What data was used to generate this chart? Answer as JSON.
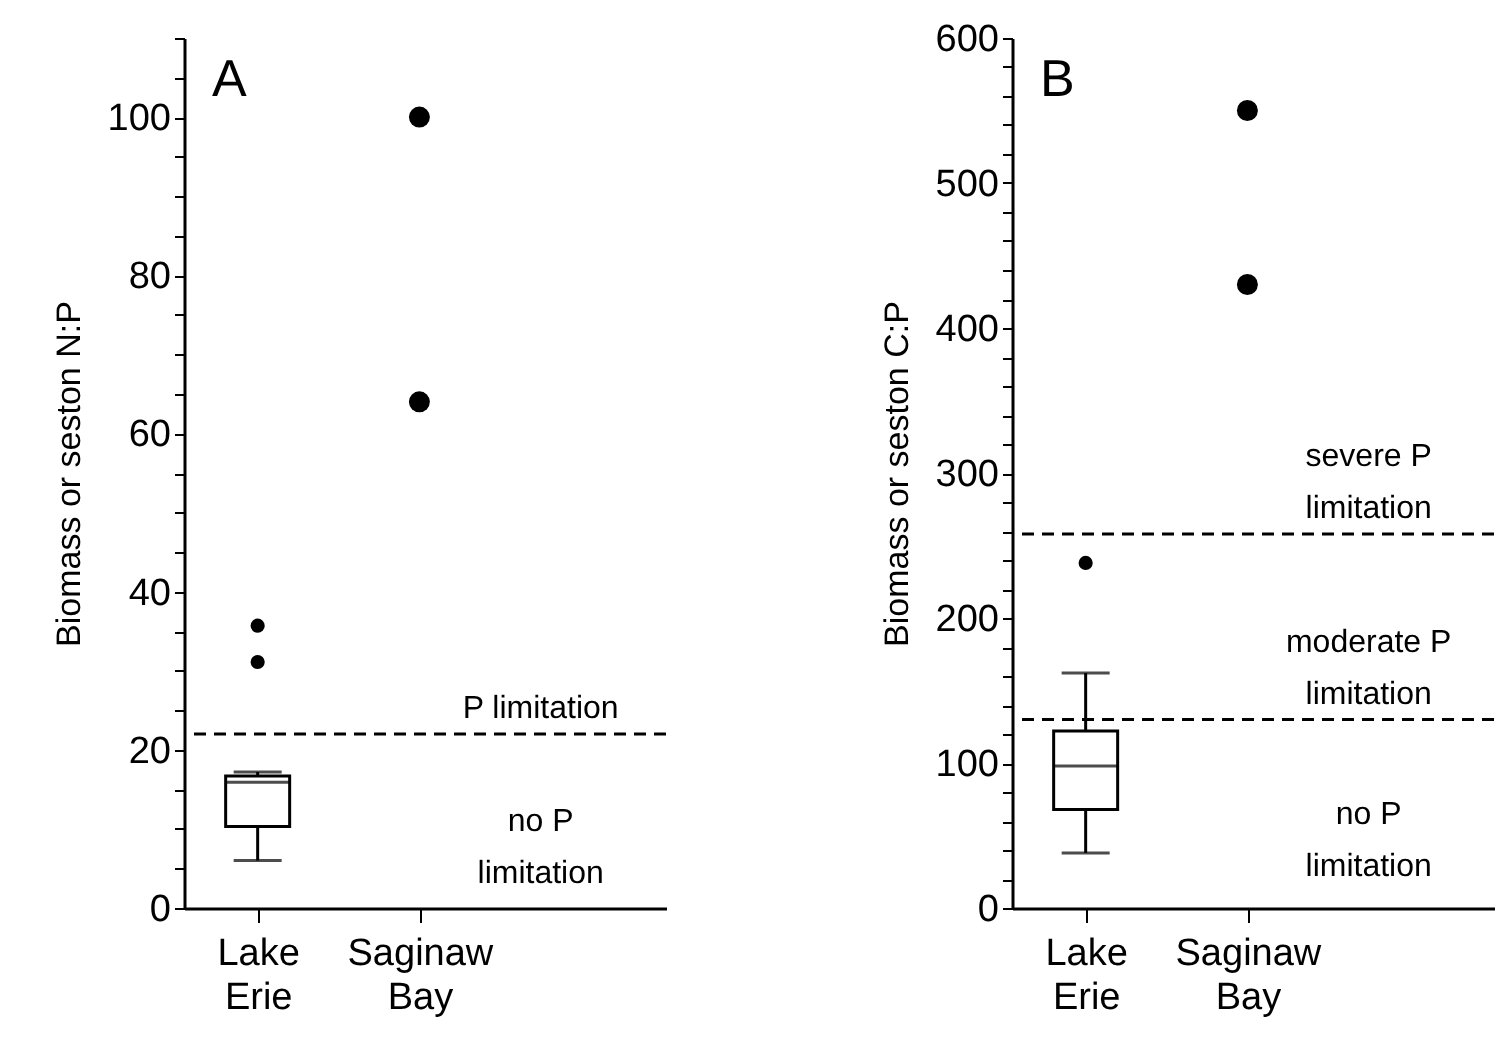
{
  "chart_data": [
    {
      "type": "box",
      "ylabel": "Biomass or seston N:P",
      "categories": [
        "Lake Erie",
        "Saginaw Bay"
      ],
      "ylim": [
        0,
        110
      ],
      "yticks": [
        0,
        {
          "value": 5,
          "label": null
        },
        {
          "value": 10,
          "label": null
        },
        {
          "value": 15,
          "label": null
        },
        20,
        {
          "value": 25,
          "label": null
        },
        {
          "value": 30,
          "label": null
        },
        {
          "value": 35,
          "label": null
        },
        40,
        {
          "value": 45,
          "label": null
        },
        {
          "value": 50,
          "label": null
        },
        {
          "value": 55,
          "label": null
        },
        60,
        {
          "value": 65,
          "label": null
        },
        {
          "value": 70,
          "label": null
        },
        {
          "value": 75,
          "label": null
        },
        80,
        {
          "value": 85,
          "label": null
        },
        {
          "value": 90,
          "label": null
        },
        {
          "value": 95,
          "label": null
        },
        100,
        {
          "value": 105,
          "label": null
        },
        {
          "value": 110,
          "label": null
        }
      ],
      "grid": false,
      "series": [
        {
          "color": "#000000",
          "boxes": [
            {
              "low": 6,
              "q1": 10.3,
              "median": 15.9,
              "q3": 16.7,
              "high": 17.2,
              "outliers": [
                35.7,
                31.1
              ]
            },
            null
          ]
        },
        {
          "type": "scatter",
          "color": "#000000",
          "x": [
            "Saginaw Bay",
            "Saginaw Bay"
          ],
          "values": [
            100,
            64
          ]
        }
      ],
      "ref_lines": [
        {
          "axis": "y",
          "value": 22,
          "line_style": "dashed"
        }
      ],
      "annotations": [
        "A",
        "P limitation",
        "no P limitation"
      ]
    },
    {
      "type": "box",
      "ylabel": "Biomass or seston C:P",
      "categories": [
        "Lake Erie",
        "Saginaw Bay"
      ],
      "ylim": [
        0,
        600
      ],
      "yticks": [
        0,
        {
          "value": 20,
          "label": null
        },
        {
          "value": 40,
          "label": null
        },
        {
          "value": 60,
          "label": null
        },
        {
          "value": 80,
          "label": null
        },
        100,
        {
          "value": 120,
          "label": null
        },
        {
          "value": 140,
          "label": null
        },
        {
          "value": 160,
          "label": null
        },
        {
          "value": 180,
          "label": null
        },
        200,
        {
          "value": 220,
          "label": null
        },
        {
          "value": 240,
          "label": null
        },
        {
          "value": 260,
          "label": null
        },
        {
          "value": 280,
          "label": null
        },
        300,
        {
          "value": 320,
          "label": null
        },
        {
          "value": 340,
          "label": null
        },
        {
          "value": 360,
          "label": null
        },
        {
          "value": 380,
          "label": null
        },
        400,
        {
          "value": 420,
          "label": null
        },
        {
          "value": 440,
          "label": null
        },
        {
          "value": 460,
          "label": null
        },
        {
          "value": 480,
          "label": null
        },
        500,
        {
          "value": 520,
          "label": null
        },
        {
          "value": 540,
          "label": null
        },
        {
          "value": 560,
          "label": null
        },
        {
          "value": 580,
          "label": null
        },
        600
      ],
      "grid": false,
      "series": [
        {
          "color": "#000000",
          "boxes": [
            {
              "low": 38,
              "q1": 68,
              "median": 98,
              "q3": 122,
              "high": 162,
              "outliers": [
                238
              ]
            },
            null
          ]
        },
        {
          "type": "scatter",
          "color": "#000000",
          "x": [
            "Saginaw Bay",
            "Saginaw Bay"
          ],
          "values": [
            550,
            430
          ]
        }
      ],
      "ref_lines": [
        {
          "axis": "y",
          "value": 258,
          "line_style": "dashed"
        },
        {
          "axis": "y",
          "value": 130,
          "line_style": "dashed"
        }
      ],
      "annotations": [
        "B",
        "severe P limitation",
        "moderate P limitation",
        "no P limitation"
      ]
    }
  ]
}
